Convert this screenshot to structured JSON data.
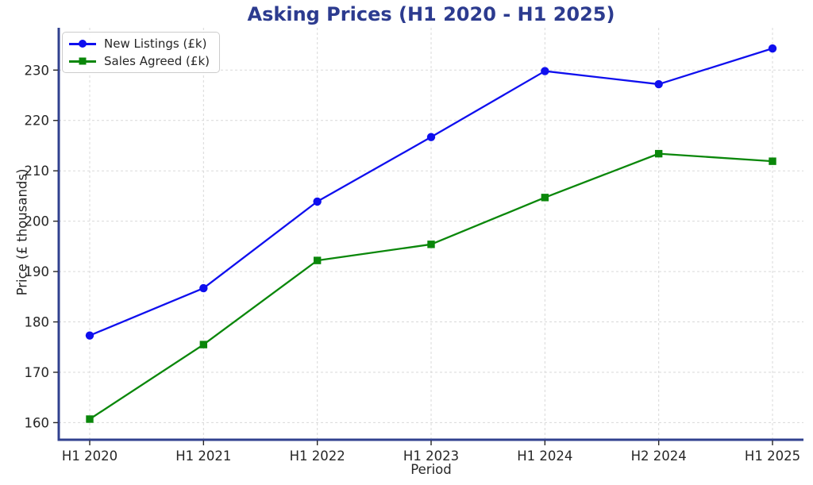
{
  "colors": {
    "title": "#2c3b8f",
    "spine": "#31418f",
    "grid": "#d9d9d9",
    "tick_label": "#262626",
    "background": "#ffffff",
    "new_listings_blue": "#0f0fee",
    "sales_agreed_green": "#0a870a"
  },
  "chart_data": {
    "type": "line",
    "title": "Asking Prices (H1 2020 - H1 2025)",
    "xlabel": "Period",
    "ylabel": "Price (£ thousands)",
    "categories": [
      "H1 2020",
      "H1 2021",
      "H1 2022",
      "H1 2023",
      "H1 2024",
      "H2 2024",
      "H1 2025"
    ],
    "series": [
      {
        "name": "New Listings (£k)",
        "color": "#0f0fee",
        "marker": "circle",
        "values": [
          177.3,
          186.7,
          203.9,
          216.7,
          229.8,
          227.2,
          234.3
        ]
      },
      {
        "name": "Sales Agreed (£k)",
        "color": "#0a870a",
        "marker": "square",
        "values": [
          160.7,
          175.5,
          192.2,
          195.4,
          204.7,
          213.4,
          211.9
        ]
      }
    ],
    "yticks": [
      160,
      170,
      180,
      190,
      200,
      210,
      220,
      230
    ],
    "ylim": [
      156.6,
      238.4
    ],
    "grid": true,
    "grid_style": "dashed",
    "legend_position": "upper left",
    "spines_visible": [
      "left",
      "bottom"
    ]
  }
}
